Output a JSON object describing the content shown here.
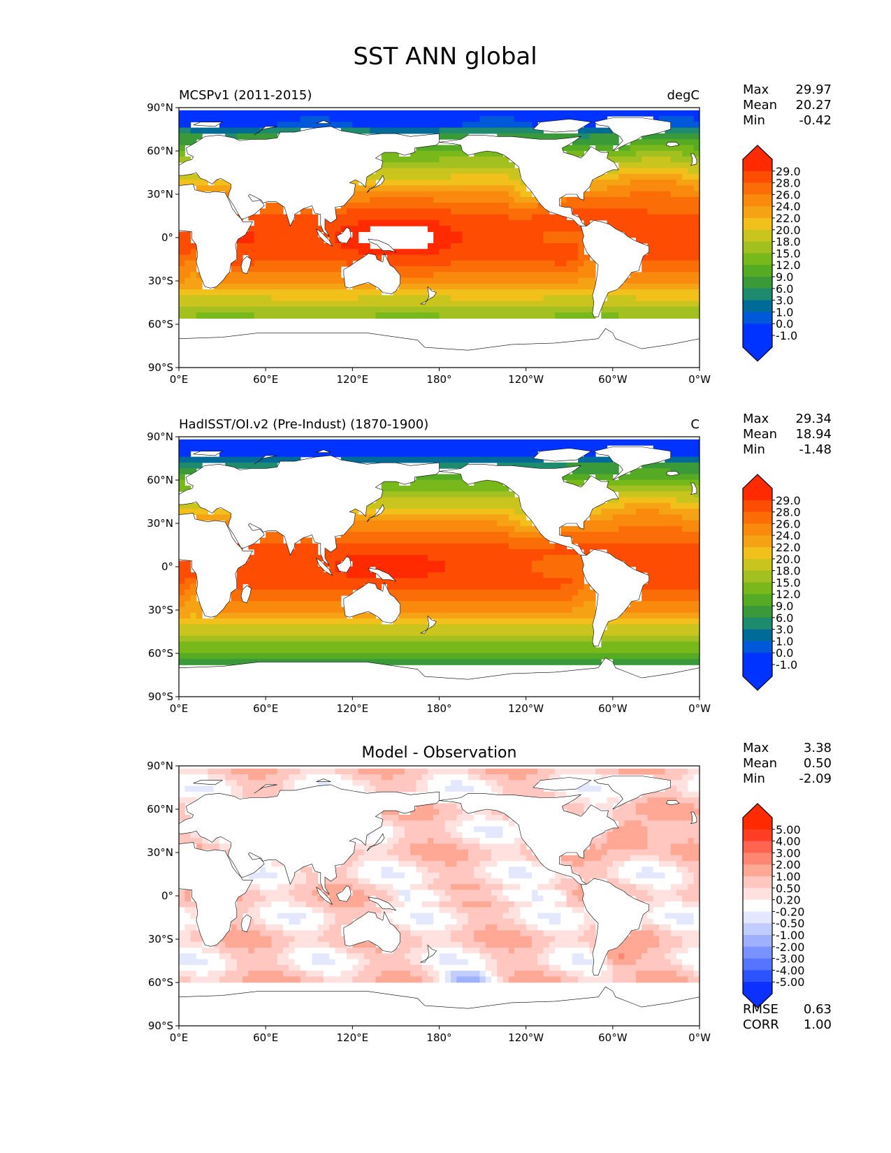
{
  "title": "SST ANN global",
  "colors": {
    "land": "#ffffff",
    "coast": "#000000",
    "sst_levels": [
      "#0033ff",
      "#0059d9",
      "#006b96",
      "#1e8a6e",
      "#3a9a3a",
      "#55ab23",
      "#79b81b",
      "#a3c021",
      "#c9c41e",
      "#f2c01b",
      "#f5a314",
      "#f98a0d",
      "#fb6e07",
      "#fd4d02",
      "#ff2a00"
    ],
    "diff_levels": [
      "#0b30ff",
      "#2d52ff",
      "#5575ff",
      "#7a92ff",
      "#9fb0ff",
      "#c2cdff",
      "#e3e8ff",
      "#ffffff",
      "#ffe2df",
      "#ffc7bf",
      "#ffa896",
      "#ff8672",
      "#ff6450",
      "#ff3d24",
      "#ff2a00"
    ]
  },
  "panels": [
    {
      "left_title": "MCSPv1 (2011-2015)",
      "right_title": "degC",
      "stats": {
        "labels": [
          "Max",
          "Mean",
          "Min"
        ],
        "values": [
          "29.97",
          "20.27",
          "-0.42"
        ]
      },
      "colorbar_ticks": [
        "29.0",
        "28.0",
        "26.0",
        "24.0",
        "22.0",
        "20.0",
        "18.0",
        "15.0",
        "12.0",
        "9.0",
        "6.0",
        "3.0",
        "1.0",
        "0.0",
        "-1.0"
      ],
      "field": "model"
    },
    {
      "left_title": "HadISST/OI.v2 (Pre-Indust) (1870-1900)",
      "right_title": "C",
      "stats": {
        "labels": [
          "Max",
          "Mean",
          "Min"
        ],
        "values": [
          "29.34",
          "18.94",
          "-1.48"
        ]
      },
      "colorbar_ticks": [
        "29.0",
        "28.0",
        "26.0",
        "24.0",
        "22.0",
        "20.0",
        "18.0",
        "15.0",
        "12.0",
        "9.0",
        "6.0",
        "3.0",
        "1.0",
        "0.0",
        "-1.0"
      ],
      "field": "obs"
    },
    {
      "center_title": "Model - Observation",
      "stats": {
        "labels": [
          "Max",
          "Mean",
          "Min"
        ],
        "values": [
          "3.38",
          "0.50",
          "-2.09"
        ]
      },
      "colorbar_ticks": [
        "5.00",
        "4.00",
        "3.00",
        "2.00",
        "1.00",
        "0.50",
        "0.20",
        "-0.20",
        "-0.50",
        "-1.00",
        "-2.00",
        "-3.00",
        "-4.00",
        "-5.00"
      ],
      "extra_stats": {
        "labels": [
          "RMSE",
          "CORR"
        ],
        "values": [
          "0.63",
          "1.00"
        ]
      },
      "field": "diff"
    }
  ],
  "axes": {
    "y_ticks": [
      "90°N",
      "60°N",
      "30°N",
      "0°",
      "30°S",
      "60°S",
      "90°S"
    ],
    "x_ticks": [
      "0°E",
      "60°E",
      "120°E",
      "180°",
      "120°W",
      "60°W",
      "0°W"
    ]
  }
}
